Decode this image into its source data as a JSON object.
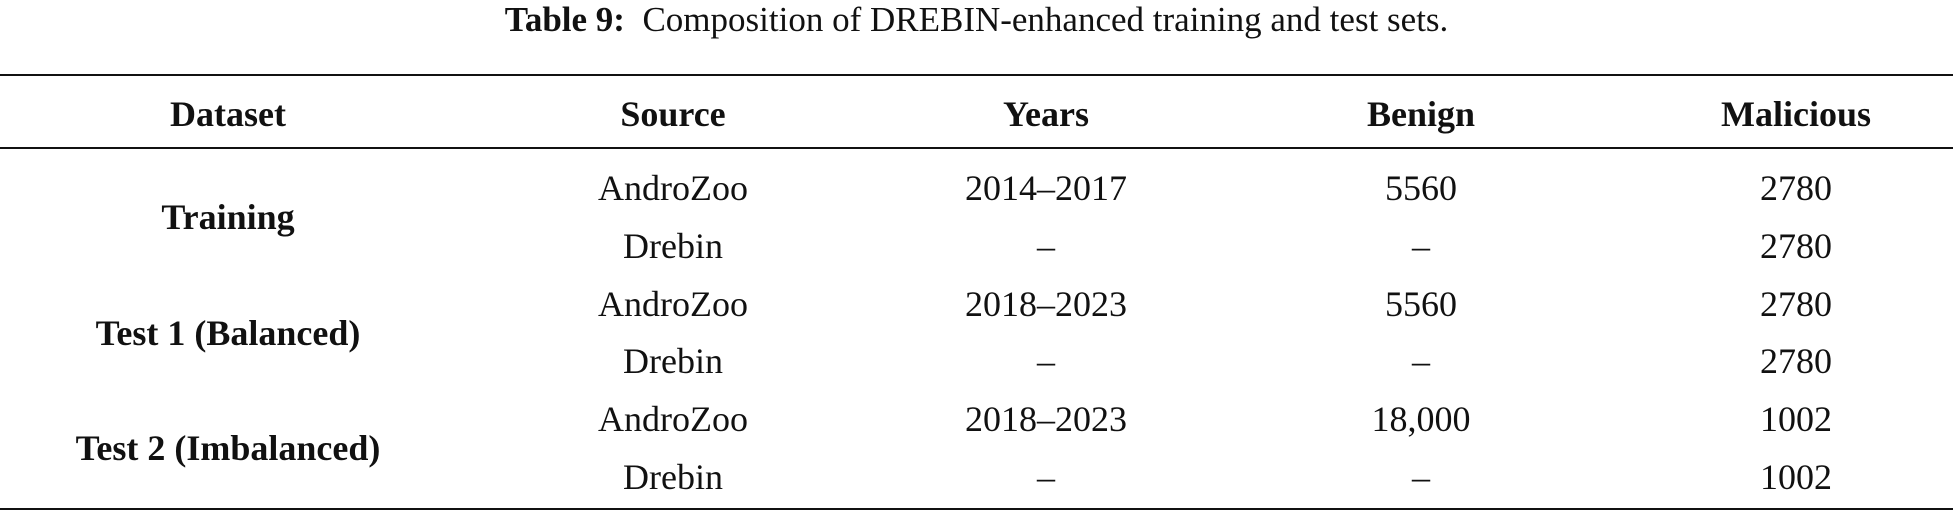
{
  "caption": {
    "label": "Table 9:",
    "text": "Composition of DREBIN-enhanced training and test sets."
  },
  "table": {
    "headers": [
      "Dataset",
      "Source",
      "Years",
      "Benign",
      "Malicious"
    ],
    "groups": [
      {
        "dataset": "Training",
        "rows": [
          [
            "AndroZoo",
            "2014–2017",
            "5560",
            "2780"
          ],
          [
            "Drebin",
            "–",
            "–",
            "2780"
          ]
        ]
      },
      {
        "dataset": "Test 1 (Balanced)",
        "rows": [
          [
            "AndroZoo",
            "2018–2023",
            "5560",
            "2780"
          ],
          [
            "Drebin",
            "–",
            "–",
            "2780"
          ]
        ]
      },
      {
        "dataset": "Test 2 (Imbalanced)",
        "rows": [
          [
            "AndroZoo",
            "2018–2023",
            "18,000",
            "1002"
          ],
          [
            "Drebin",
            "–",
            "–",
            "1002"
          ]
        ]
      }
    ]
  }
}
